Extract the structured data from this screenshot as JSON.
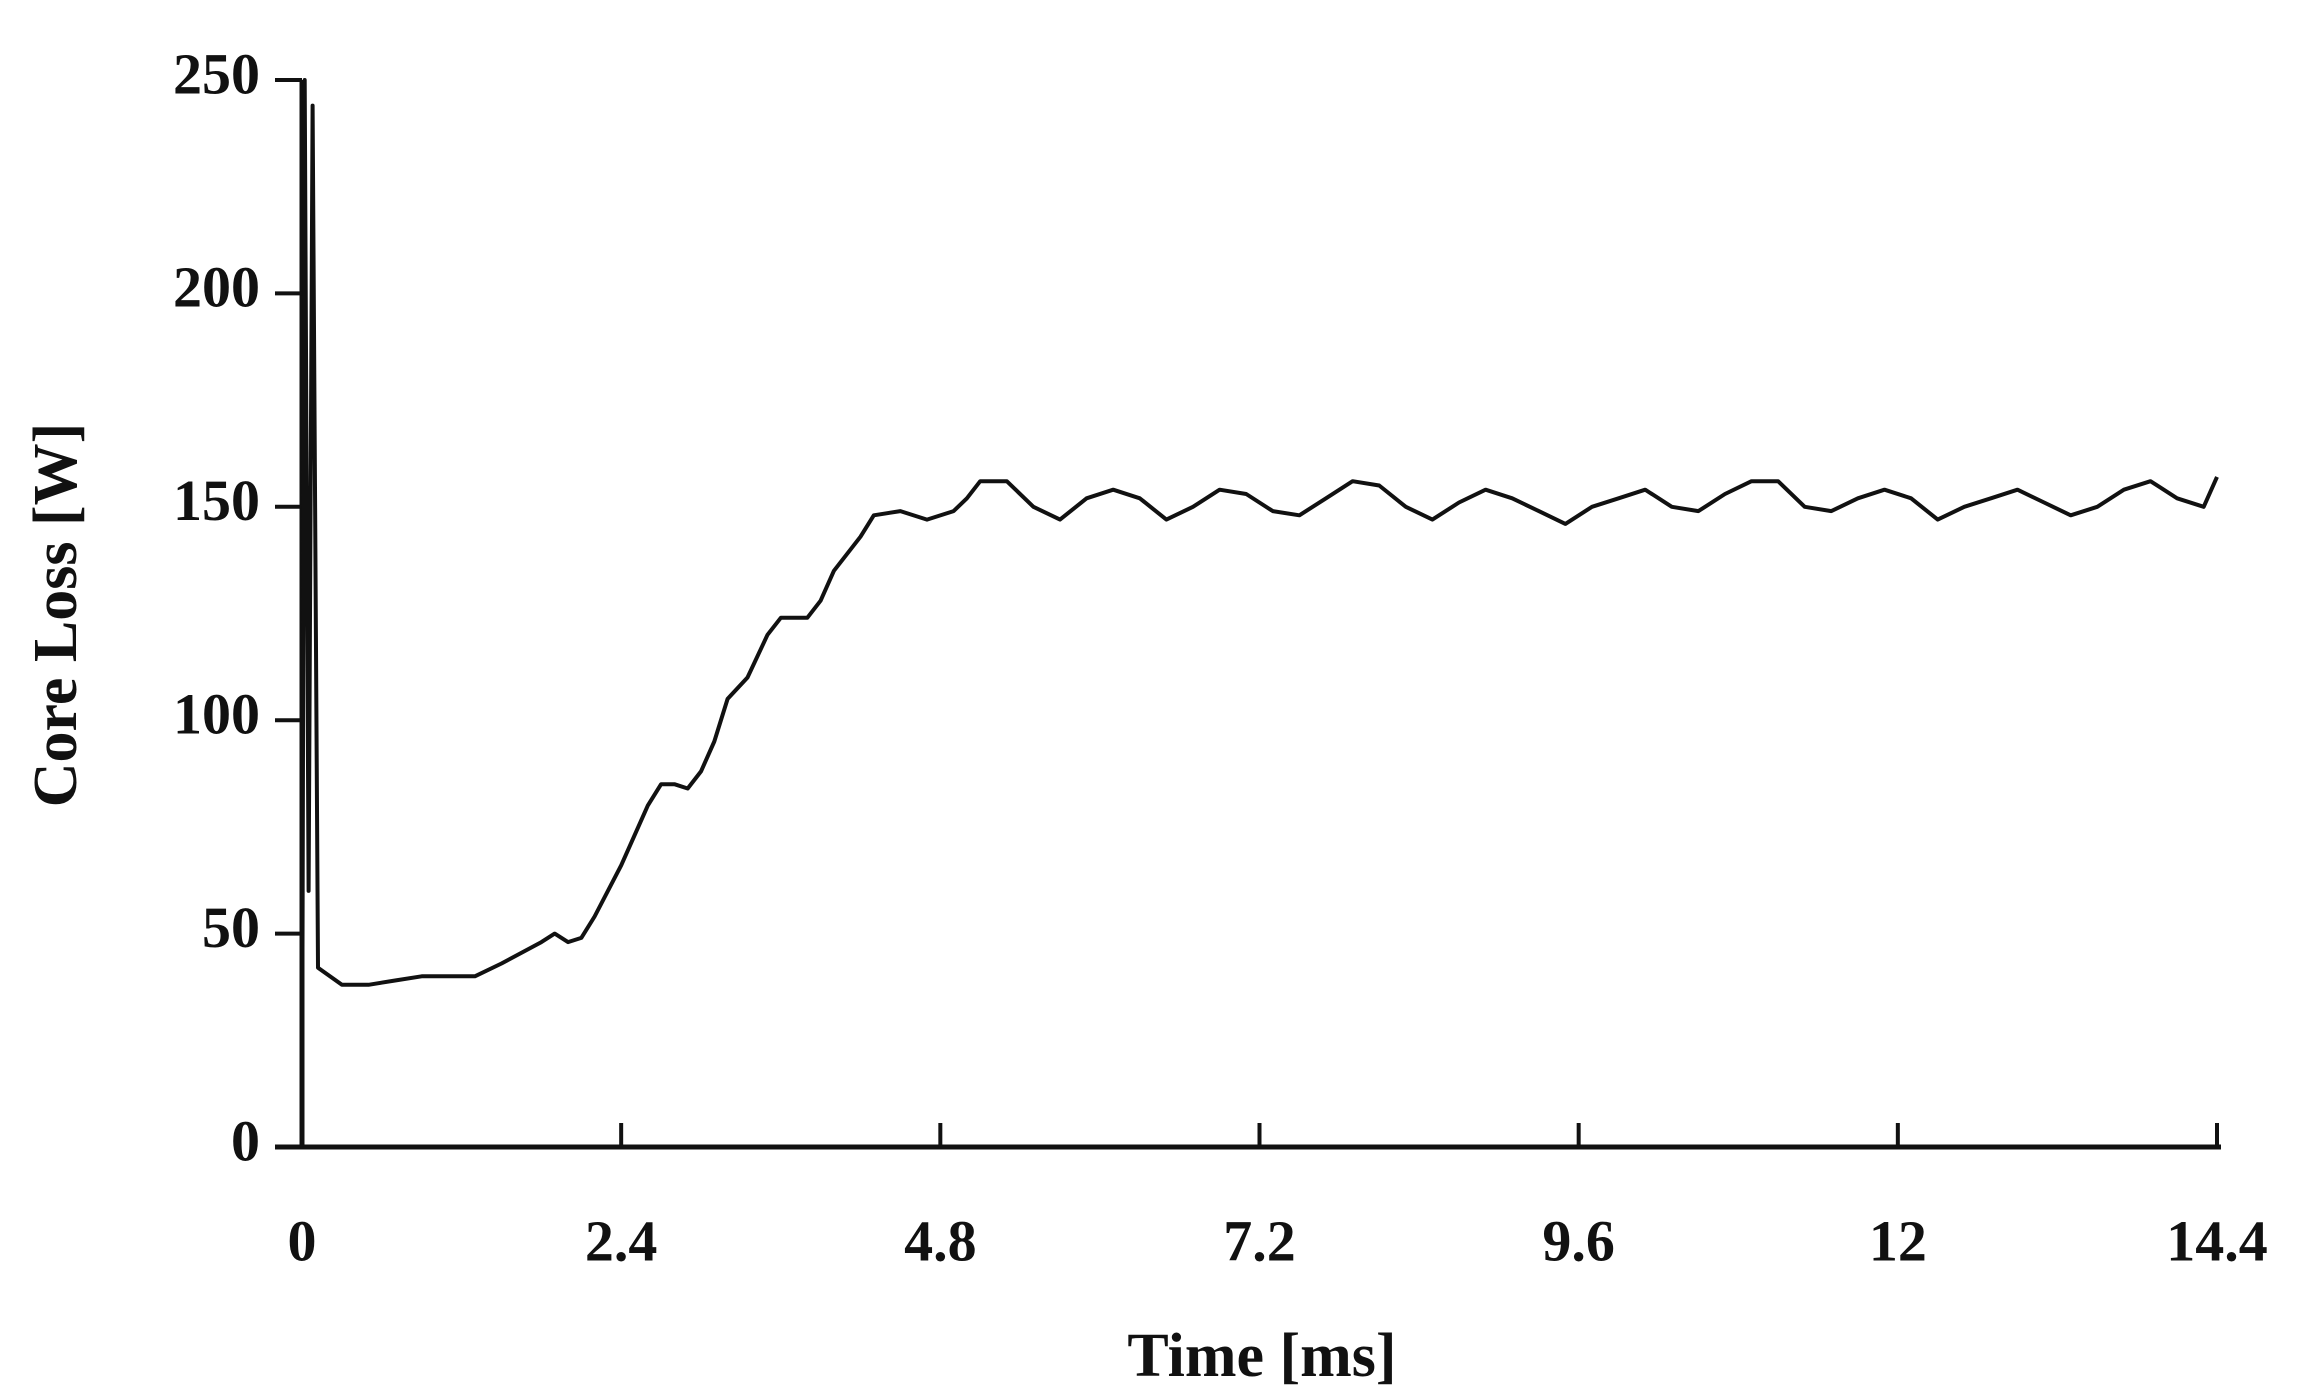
{
  "chart_data": {
    "type": "line",
    "x_label": "Time [ms]",
    "y_label": "Core Loss [W]",
    "xlim": [
      0,
      14.4
    ],
    "xticks": [
      0,
      2.4,
      4.8,
      7.2,
      9.6,
      12,
      14.4
    ],
    "ylim": [
      0,
      250
    ],
    "yticks": [
      0,
      50,
      100,
      150,
      200,
      250
    ],
    "grid": false,
    "series": [
      {
        "name": "Core loss",
        "color": "#111111",
        "x": [
          0,
          0.02,
          0.05,
          0.08,
          0.12,
          0.3,
          0.5,
          0.7,
          0.9,
          1.1,
          1.3,
          1.5,
          1.8,
          1.9,
          2.0,
          2.1,
          2.2,
          2.4,
          2.6,
          2.7,
          2.8,
          2.9,
          3.0,
          3.1,
          3.2,
          3.35,
          3.5,
          3.6,
          3.8,
          3.9,
          4.0,
          4.2,
          4.3,
          4.5,
          4.7,
          4.9,
          5.0,
          5.1,
          5.3,
          5.5,
          5.7,
          5.9,
          6.1,
          6.3,
          6.5,
          6.7,
          6.9,
          7.1,
          7.3,
          7.5,
          7.7,
          7.9,
          8.1,
          8.3,
          8.5,
          8.7,
          8.9,
          9.1,
          9.3,
          9.5,
          9.7,
          9.9,
          10.1,
          10.3,
          10.5,
          10.7,
          10.9,
          11.1,
          11.3,
          11.5,
          11.7,
          11.9,
          12.1,
          12.3,
          12.5,
          12.7,
          12.9,
          13.1,
          13.3,
          13.5,
          13.7,
          13.9,
          14.1,
          14.3,
          14.4
        ],
        "values": [
          0,
          250,
          60,
          244,
          42,
          38,
          38,
          39,
          40,
          40,
          40,
          43,
          48,
          50,
          48,
          49,
          54,
          66,
          80,
          85,
          85,
          84,
          88,
          95,
          105,
          110,
          120,
          124,
          124,
          128,
          135,
          143,
          148,
          149,
          147,
          149,
          152,
          156,
          156,
          150,
          147,
          152,
          154,
          152,
          147,
          150,
          154,
          153,
          149,
          148,
          152,
          156,
          155,
          150,
          147,
          151,
          154,
          152,
          149,
          146,
          150,
          152,
          154,
          150,
          149,
          153,
          156,
          156,
          150,
          149,
          152,
          154,
          152,
          147,
          150,
          152,
          154,
          151,
          148,
          150,
          154,
          156,
          152,
          150,
          157
        ]
      }
    ]
  }
}
